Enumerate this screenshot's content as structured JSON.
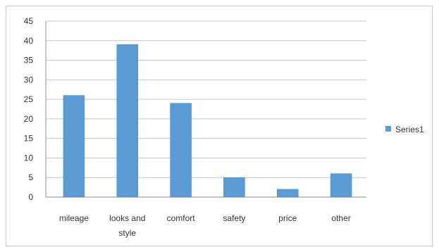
{
  "chart_data": {
    "type": "bar",
    "categories": [
      "mileage",
      "looks and style",
      "comfort",
      "safety",
      "price",
      "other"
    ],
    "category_lines": [
      [
        "mileage"
      ],
      [
        "looks and",
        "style"
      ],
      [
        "comfort"
      ],
      [
        "safety"
      ],
      [
        "price"
      ],
      [
        "other"
      ]
    ],
    "series": [
      {
        "name": "Series1",
        "values": [
          26,
          39,
          24,
          5,
          2,
          6
        ]
      }
    ],
    "ylim": [
      0,
      45
    ],
    "yticks": [
      0,
      5,
      10,
      15,
      20,
      25,
      30,
      35,
      40,
      45
    ],
    "grid": true,
    "legend_position": "right",
    "colors": {
      "bar": "#5b9bd5",
      "bar_edge": "#4a86c0",
      "grid": "#c6c6c6",
      "axis": "#8c8c8c"
    }
  }
}
